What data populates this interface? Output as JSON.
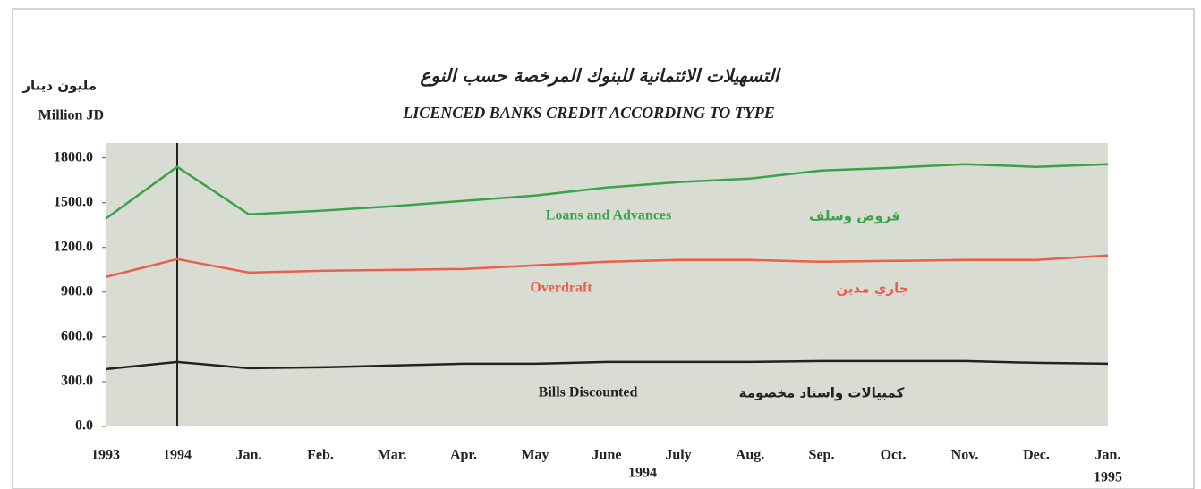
{
  "chart_data": {
    "type": "line",
    "title": "LICENCED BANKS CREDIT ACCORDING TO TYPE",
    "subtitle": "التسهيلات الائتمانية للبنوك المرخصة حسب النوع",
    "y_label": "Million JD",
    "y_label_ar": "مليون دينار",
    "categories": [
      "1993",
      "1994",
      "Jan.",
      "Feb.",
      "Mar.",
      "Apr.",
      "May",
      "June",
      "July",
      "Aug.",
      "Sep.",
      "Oct.",
      "Nov.",
      "Dec.",
      "Jan."
    ],
    "x_annotations": [
      "1994",
      "1995"
    ],
    "series": [
      {
        "name": "Loans and Advances",
        "name_ar": "قروض وسلف",
        "color": "#3aa24a",
        "values": [
          1392,
          1740,
          1422,
          1446,
          1476,
          1512,
          1548,
          1602,
          1638,
          1662,
          1716,
          1734,
          1758,
          1740,
          1758
        ]
      },
      {
        "name": "Overdraft",
        "name_ar": "جاري مدين",
        "color": "#e8604a",
        "values": [
          1002,
          1122,
          1032,
          1044,
          1050,
          1056,
          1080,
          1104,
          1116,
          1116,
          1104,
          1110,
          1116,
          1116,
          1146
        ]
      },
      {
        "name": "Bills Discounted",
        "name_ar": "كمبيالات واسناد مخصومة",
        "color": "#222222",
        "values": [
          384,
          432,
          390,
          396,
          408,
          420,
          420,
          432,
          432,
          432,
          438,
          438,
          438,
          426,
          420
        ]
      }
    ],
    "ylim": [
      0,
      1900
    ],
    "yticks": [
      {
        "value": 0,
        "label": "0.0"
      },
      {
        "value": 300,
        "label": "300.0"
      },
      {
        "value": 600,
        "label": "600.0"
      },
      {
        "value": 900,
        "label": "900.0"
      },
      {
        "value": 1200,
        "label": "1200.0"
      },
      {
        "value": 1500,
        "label": "1500.0"
      },
      {
        "value": 1800,
        "label": "1800.0"
      }
    ],
    "grid": false
  }
}
